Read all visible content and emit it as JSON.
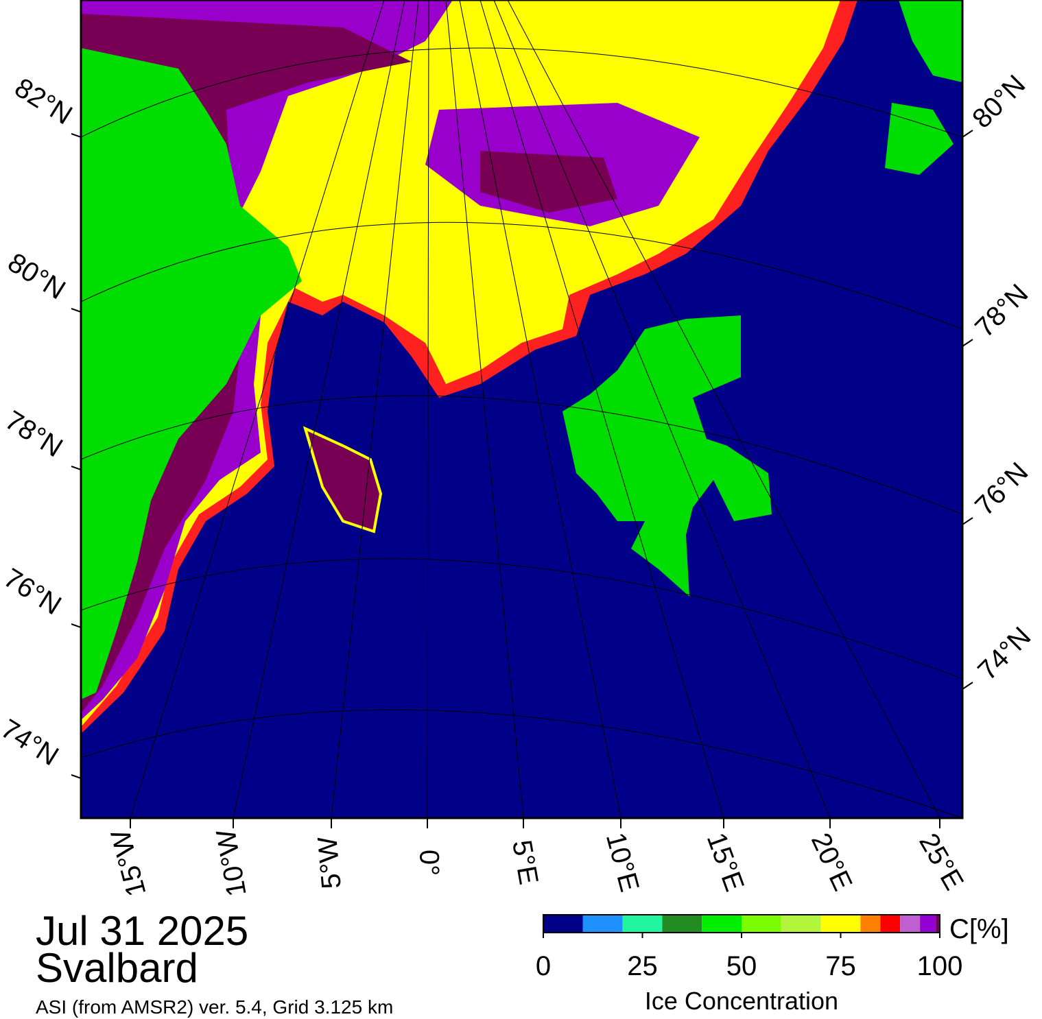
{
  "map": {
    "lat_labels_left": [
      "82°N",
      "80°N",
      "78°N",
      "76°N",
      "74°N"
    ],
    "lat_labels_right": [
      "80°N",
      "78°N",
      "76°N",
      "74°N"
    ],
    "lon_labels": [
      "15°W",
      "10°W",
      "5°W",
      "0°",
      "5°E",
      "10°E",
      "15°E",
      "20°E",
      "25°E"
    ]
  },
  "legend": {
    "unit": "C[%]",
    "label": "Ice Concentration",
    "bounds": [
      0,
      10,
      20,
      30,
      40,
      50,
      60,
      70,
      80,
      85,
      90,
      95,
      99,
      100
    ],
    "colors": [
      "#000088",
      "#1e90ff",
      "#22f5a0",
      "#228b22",
      "#00ee00",
      "#7cfc00",
      "#b3f53c",
      "#ffff00",
      "#ff8000",
      "#ff0000",
      "#c060d0",
      "#9400d3",
      "#700060"
    ],
    "ticks": [
      0,
      25,
      50,
      75,
      100
    ]
  },
  "footer": {
    "date": "Jul 31 2025",
    "region": "Svalbard",
    "source": "ASI (from AMSR2) ver. 5.4,  Grid 3.125 km"
  }
}
